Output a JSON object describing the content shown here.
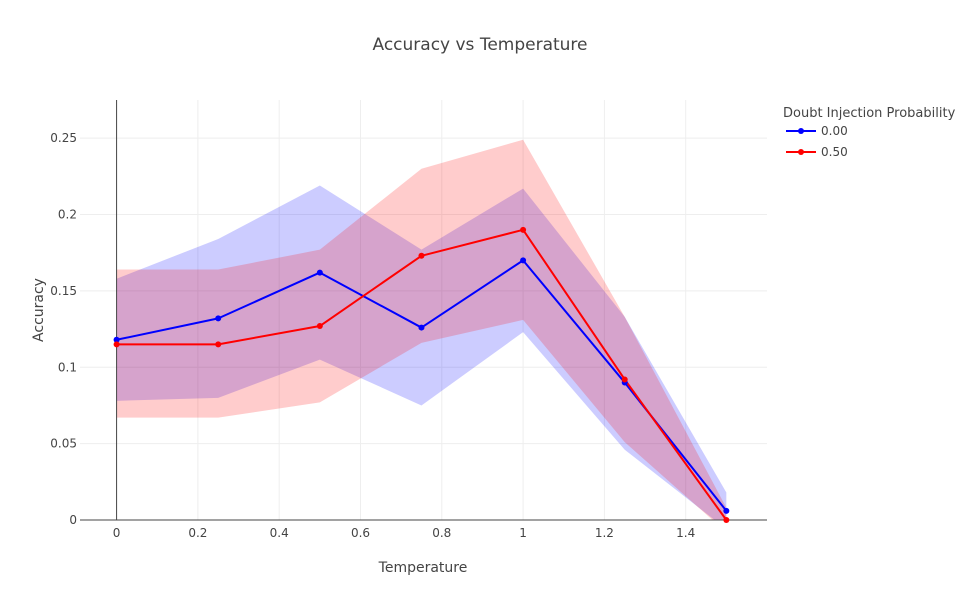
{
  "chart_data": {
    "type": "line",
    "title": "Accuracy vs Temperature",
    "xlabel": "Temperature",
    "ylabel": "Accuracy",
    "xlim": [
      -0.09,
      1.6
    ],
    "ylim": [
      0,
      0.275
    ],
    "xticks": [
      0,
      0.2,
      0.4,
      0.6,
      0.8,
      1,
      1.2,
      1.4
    ],
    "xtick_labels": [
      "0",
      "0.2",
      "0.4",
      "0.6",
      "0.8",
      "1",
      "1.2",
      "1.4"
    ],
    "yticks": [
      0,
      0.05,
      0.1,
      0.15,
      0.2,
      0.25
    ],
    "ytick_labels": [
      "0",
      "0.05",
      "0.1",
      "0.15",
      "0.2",
      "0.25"
    ],
    "grid": true,
    "legend": {
      "title": "Doubt Injection Probability",
      "placement": "top-right, outside plot"
    },
    "x": [
      0,
      0.25,
      0.5,
      0.75,
      1,
      1.25,
      1.5
    ],
    "series": [
      {
        "name": "0.00",
        "color": "#0000ff",
        "band_color": "#0000ff",
        "values": [
          0.118,
          0.132,
          0.162,
          0.126,
          0.17,
          0.09,
          0.006
        ],
        "upper": [
          0.158,
          0.184,
          0.219,
          0.177,
          0.217,
          0.133,
          0.018
        ],
        "lower": [
          0.078,
          0.08,
          0.105,
          0.075,
          0.123,
          0.046,
          -0.006
        ]
      },
      {
        "name": "0.50",
        "color": "#ff0000",
        "band_color": "#ff0000",
        "values": [
          0.115,
          0.115,
          0.127,
          0.173,
          0.19,
          0.092,
          0.0
        ],
        "upper": [
          0.164,
          0.164,
          0.177,
          0.23,
          0.249,
          0.133,
          0.008
        ],
        "lower": [
          0.067,
          0.067,
          0.077,
          0.116,
          0.131,
          0.051,
          -0.008
        ]
      }
    ]
  }
}
